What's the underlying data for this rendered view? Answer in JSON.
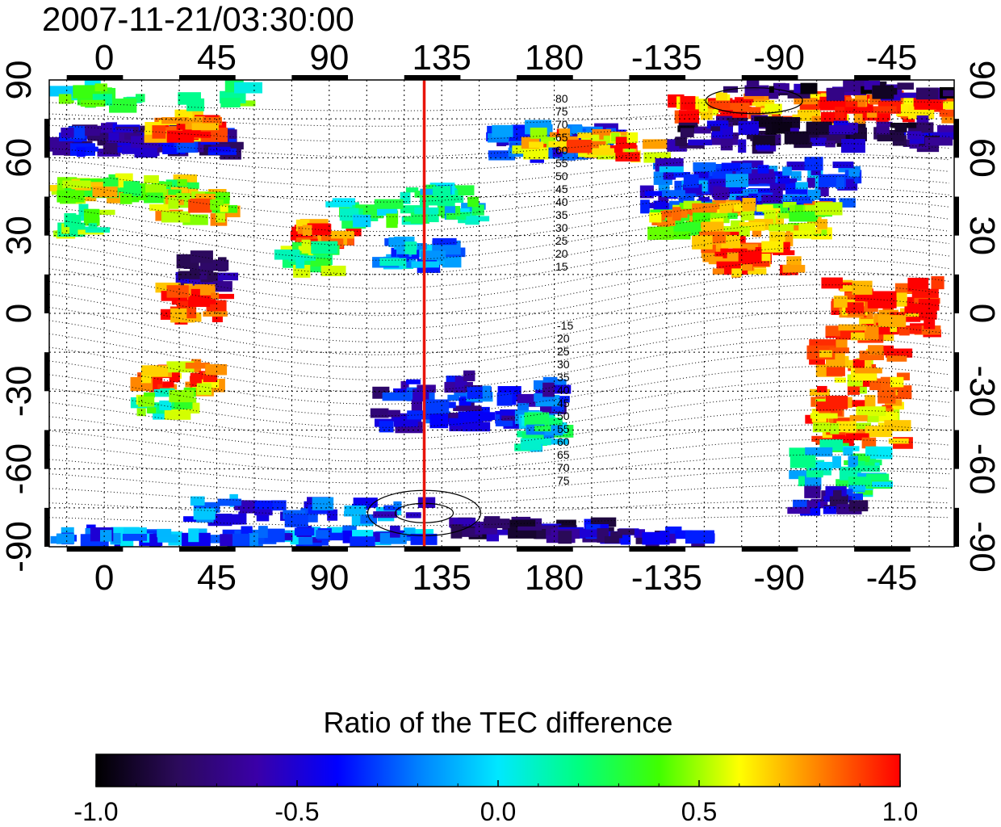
{
  "title": "2007-11-21/03:30:00",
  "map": {
    "lon_tick_labels": [
      "0",
      "45",
      "90",
      "135",
      "180",
      "-135",
      "-90",
      "-45"
    ],
    "lon_tick_values": [
      0,
      45,
      90,
      135,
      180,
      225,
      270,
      315
    ],
    "lat_tick_labels": [
      "90",
      "60",
      "30",
      "0",
      "-30",
      "-60",
      "-90"
    ],
    "lat_tick_values": [
      90,
      60,
      30,
      0,
      -30,
      -60,
      -90
    ],
    "x_range": [
      -22,
      340
    ],
    "y_range": [
      -90,
      90
    ],
    "marker_longitude": 128,
    "marker_color": "#e8140a",
    "grid": true,
    "contour_labels_north": [
      "80",
      "75",
      "70",
      "65",
      "60",
      "55",
      "50",
      "45",
      "40",
      "35",
      "30",
      "25",
      "20",
      "15"
    ],
    "contour_labels_south": [
      "-15",
      "20",
      "25",
      "30",
      "35",
      "40",
      "45",
      "50",
      "55",
      "60",
      "65",
      "70",
      "75"
    ]
  },
  "colorbar": {
    "title": "Ratio of the TEC difference",
    "tick_labels": [
      "-1.0",
      "-0.5",
      "0.0",
      "0.5",
      "1.0"
    ],
    "tick_values": [
      -1.0,
      -0.5,
      0.0,
      0.5,
      1.0
    ],
    "range": [
      -1.0,
      1.0
    ],
    "colors": [
      "#000000",
      "#2b0a5a",
      "#3a00a8",
      "#0000ff",
      "#0080ff",
      "#00e8ff",
      "#00ff80",
      "#40ff00",
      "#ffff00",
      "#ff8000",
      "#ff0000"
    ]
  }
}
